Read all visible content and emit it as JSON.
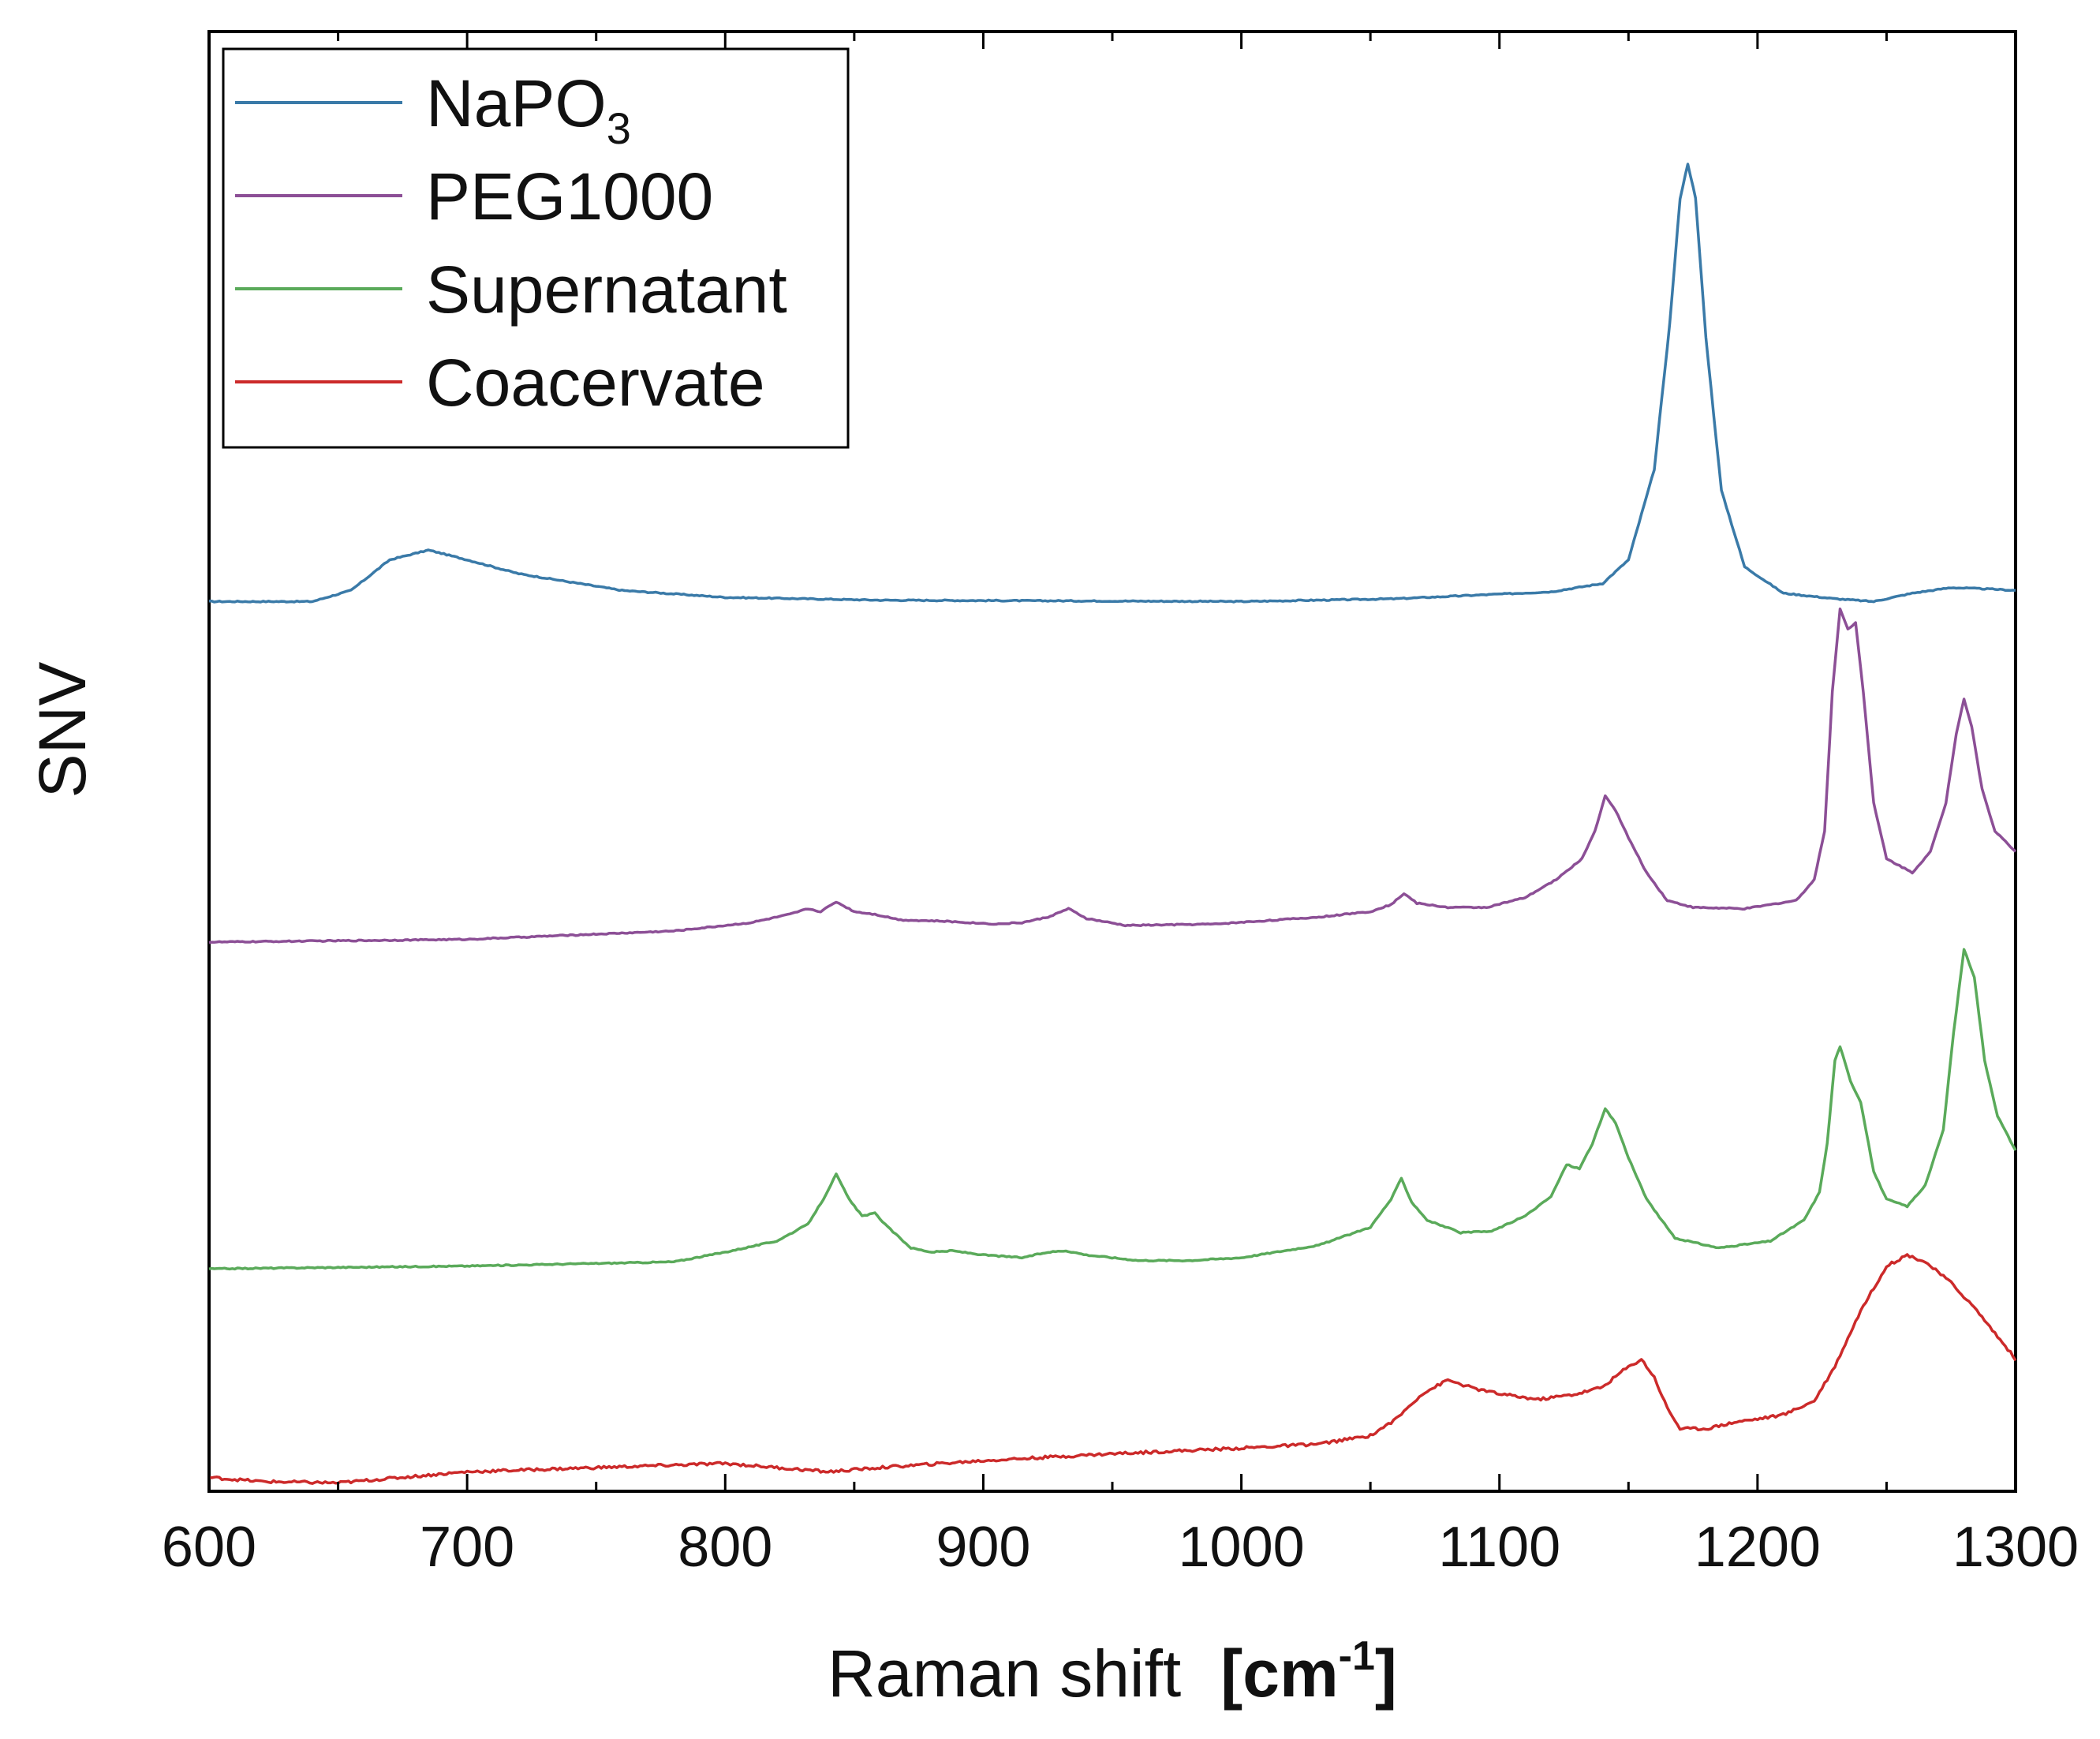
{
  "chart_data": {
    "type": "line",
    "title": "",
    "xlabel": "Raman shift",
    "xlabel_unit": {
      "open": "[",
      "base": "cm",
      "sup": "-1",
      "close": "]"
    },
    "ylabel": "SNV",
    "xlim": [
      600,
      1300
    ],
    "ylim": [
      0,
      10.5
    ],
    "x_ticks": [
      600,
      700,
      800,
      900,
      1000,
      1100,
      1200,
      1300
    ],
    "y_ticks_labeled": false,
    "grid": false,
    "legend_position": "top-left",
    "series": [
      {
        "name": "NaPO",
        "name_sub": "3",
        "color": "#3a7aa8",
        "offset": 6.4,
        "points": [
          [
            600,
            0
          ],
          [
            640,
            0
          ],
          [
            655,
            0.08
          ],
          [
            670,
            0.3
          ],
          [
            685,
            0.37
          ],
          [
            700,
            0.3
          ],
          [
            720,
            0.2
          ],
          [
            760,
            0.08
          ],
          [
            800,
            0.03
          ],
          [
            860,
            0.01
          ],
          [
            1000,
            0
          ],
          [
            1060,
            0.02
          ],
          [
            1120,
            0.07
          ],
          [
            1140,
            0.13
          ],
          [
            1150,
            0.3
          ],
          [
            1160,
            0.95
          ],
          [
            1166,
            2.0
          ],
          [
            1170,
            2.9
          ],
          [
            1173,
            3.15
          ],
          [
            1176,
            2.9
          ],
          [
            1180,
            1.9
          ],
          [
            1186,
            0.8
          ],
          [
            1195,
            0.25
          ],
          [
            1210,
            0.06
          ],
          [
            1230,
            0.02
          ],
          [
            1245,
            0.0
          ],
          [
            1260,
            0.06
          ],
          [
            1275,
            0.1
          ],
          [
            1290,
            0.09
          ],
          [
            1300,
            0.08
          ]
        ]
      },
      {
        "name": "PEG1000",
        "color": "#8c4f96",
        "offset": 3.95,
        "points": [
          [
            600,
            0
          ],
          [
            700,
            0.02
          ],
          [
            780,
            0.08
          ],
          [
            810,
            0.14
          ],
          [
            825,
            0.2
          ],
          [
            832,
            0.24
          ],
          [
            837,
            0.22
          ],
          [
            843,
            0.29
          ],
          [
            850,
            0.22
          ],
          [
            858,
            0.2
          ],
          [
            868,
            0.16
          ],
          [
            885,
            0.15
          ],
          [
            905,
            0.13
          ],
          [
            915,
            0.14
          ],
          [
            925,
            0.18
          ],
          [
            933,
            0.24
          ],
          [
            940,
            0.17
          ],
          [
            955,
            0.12
          ],
          [
            990,
            0.13
          ],
          [
            1030,
            0.18
          ],
          [
            1050,
            0.22
          ],
          [
            1058,
            0.27
          ],
          [
            1063,
            0.35
          ],
          [
            1068,
            0.28
          ],
          [
            1080,
            0.25
          ],
          [
            1095,
            0.25
          ],
          [
            1110,
            0.32
          ],
          [
            1122,
            0.45
          ],
          [
            1132,
            0.6
          ],
          [
            1137,
            0.8
          ],
          [
            1141,
            1.05
          ],
          [
            1145,
            0.95
          ],
          [
            1150,
            0.75
          ],
          [
            1157,
            0.5
          ],
          [
            1165,
            0.3
          ],
          [
            1175,
            0.25
          ],
          [
            1195,
            0.24
          ],
          [
            1215,
            0.3
          ],
          [
            1222,
            0.45
          ],
          [
            1226,
            0.8
          ],
          [
            1229,
            1.8
          ],
          [
            1232,
            2.4
          ],
          [
            1235,
            2.25
          ],
          [
            1238,
            2.3
          ],
          [
            1241,
            1.8
          ],
          [
            1245,
            1.0
          ],
          [
            1250,
            0.6
          ],
          [
            1260,
            0.5
          ],
          [
            1267,
            0.65
          ],
          [
            1273,
            1.0
          ],
          [
            1277,
            1.5
          ],
          [
            1280,
            1.75
          ],
          [
            1283,
            1.55
          ],
          [
            1287,
            1.1
          ],
          [
            1292,
            0.8
          ],
          [
            1300,
            0.65
          ]
        ]
      },
      {
        "name": "Supernatant",
        "color": "#5aaa5a",
        "offset": 1.6,
        "points": [
          [
            600,
            0
          ],
          [
            700,
            0.02
          ],
          [
            780,
            0.05
          ],
          [
            800,
            0.12
          ],
          [
            820,
            0.2
          ],
          [
            832,
            0.32
          ],
          [
            838,
            0.5
          ],
          [
            843,
            0.68
          ],
          [
            848,
            0.5
          ],
          [
            853,
            0.38
          ],
          [
            858,
            0.4
          ],
          [
            863,
            0.3
          ],
          [
            872,
            0.15
          ],
          [
            880,
            0.12
          ],
          [
            888,
            0.13
          ],
          [
            900,
            0.1
          ],
          [
            915,
            0.08
          ],
          [
            925,
            0.12
          ],
          [
            932,
            0.13
          ],
          [
            940,
            0.1
          ],
          [
            960,
            0.06
          ],
          [
            980,
            0.06
          ],
          [
            1000,
            0.08
          ],
          [
            1030,
            0.17
          ],
          [
            1050,
            0.3
          ],
          [
            1058,
            0.5
          ],
          [
            1062,
            0.65
          ],
          [
            1066,
            0.48
          ],
          [
            1072,
            0.35
          ],
          [
            1085,
            0.26
          ],
          [
            1097,
            0.27
          ],
          [
            1110,
            0.38
          ],
          [
            1120,
            0.52
          ],
          [
            1126,
            0.75
          ],
          [
            1131,
            0.72
          ],
          [
            1136,
            0.9
          ],
          [
            1141,
            1.15
          ],
          [
            1145,
            1.05
          ],
          [
            1150,
            0.8
          ],
          [
            1157,
            0.5
          ],
          [
            1168,
            0.22
          ],
          [
            1185,
            0.15
          ],
          [
            1205,
            0.2
          ],
          [
            1218,
            0.35
          ],
          [
            1224,
            0.55
          ],
          [
            1227,
            0.9
          ],
          [
            1230,
            1.5
          ],
          [
            1232,
            1.6
          ],
          [
            1236,
            1.35
          ],
          [
            1240,
            1.2
          ],
          [
            1245,
            0.7
          ],
          [
            1250,
            0.5
          ],
          [
            1258,
            0.45
          ],
          [
            1265,
            0.6
          ],
          [
            1272,
            1.0
          ],
          [
            1276,
            1.7
          ],
          [
            1280,
            2.3
          ],
          [
            1284,
            2.1
          ],
          [
            1288,
            1.5
          ],
          [
            1293,
            1.1
          ],
          [
            1300,
            0.85
          ]
        ]
      },
      {
        "name": "Coacervate",
        "color": "#cc2a2a",
        "offset": 0,
        "points": [
          [
            600,
            0.1
          ],
          [
            620,
            0.07
          ],
          [
            650,
            0.06
          ],
          [
            700,
            0.14
          ],
          [
            750,
            0.17
          ],
          [
            800,
            0.2
          ],
          [
            840,
            0.14
          ],
          [
            860,
            0.17
          ],
          [
            900,
            0.22
          ],
          [
            950,
            0.27
          ],
          [
            1000,
            0.31
          ],
          [
            1030,
            0.34
          ],
          [
            1050,
            0.4
          ],
          [
            1060,
            0.52
          ],
          [
            1070,
            0.7
          ],
          [
            1080,
            0.8
          ],
          [
            1090,
            0.74
          ],
          [
            1100,
            0.7
          ],
          [
            1115,
            0.66
          ],
          [
            1130,
            0.7
          ],
          [
            1140,
            0.75
          ],
          [
            1148,
            0.87
          ],
          [
            1155,
            0.95
          ],
          [
            1160,
            0.82
          ],
          [
            1165,
            0.6
          ],
          [
            1170,
            0.45
          ],
          [
            1180,
            0.45
          ],
          [
            1192,
            0.5
          ],
          [
            1200,
            0.52
          ],
          [
            1210,
            0.55
          ],
          [
            1222,
            0.65
          ],
          [
            1230,
            0.9
          ],
          [
            1240,
            1.3
          ],
          [
            1250,
            1.62
          ],
          [
            1258,
            1.7
          ],
          [
            1265,
            1.65
          ],
          [
            1275,
            1.5
          ],
          [
            1285,
            1.3
          ],
          [
            1300,
            0.95
          ]
        ]
      }
    ]
  }
}
